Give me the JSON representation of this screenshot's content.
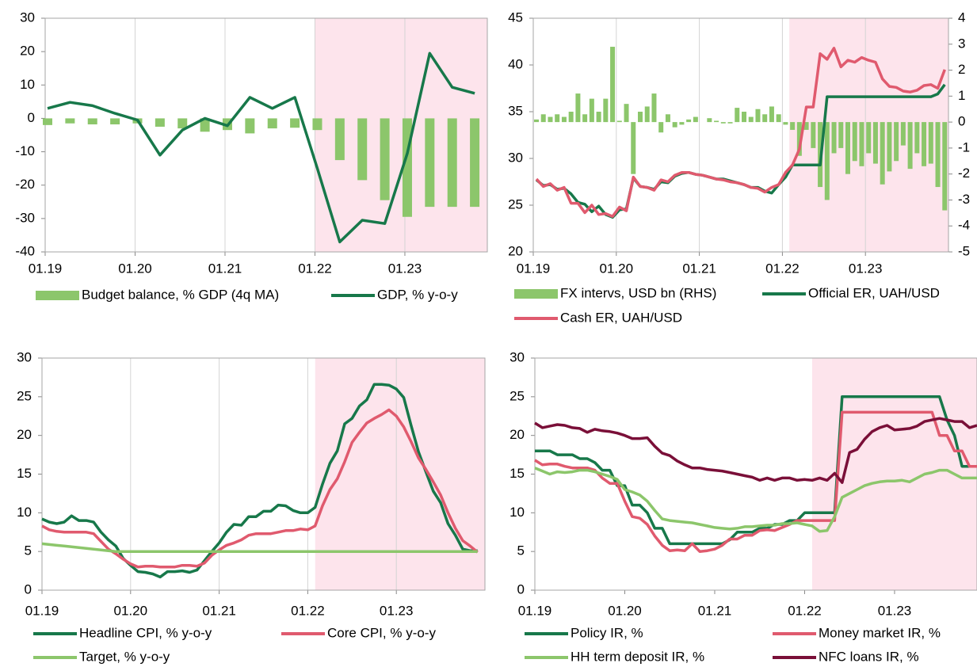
{
  "chart_data": [
    {
      "type": "combo",
      "grid": "vertical",
      "shade_from": "2022-01",
      "xlim": [
        "2019-01",
        "2023-12"
      ],
      "xticks": [
        {
          "value": "2019-01",
          "label": "01.19"
        },
        {
          "value": "2020-01",
          "label": "01.20"
        },
        {
          "value": "2021-01",
          "label": "01.21"
        },
        {
          "value": "2022-01",
          "label": "01.22"
        },
        {
          "value": "2023-01",
          "label": "01.23"
        }
      ],
      "ylim": [
        -40,
        30
      ],
      "yticks": [
        -40,
        -30,
        -20,
        -10,
        0,
        10,
        20,
        30
      ],
      "x": [
        "2019-01",
        "2019-04",
        "2019-07",
        "2019-10",
        "2020-01",
        "2020-04",
        "2020-07",
        "2020-10",
        "2021-01",
        "2021-04",
        "2021-07",
        "2021-10",
        "2022-01",
        "2022-04",
        "2022-07",
        "2022-10",
        "2023-01",
        "2023-04",
        "2023-07",
        "2023-10"
      ],
      "series": [
        {
          "name": "Budget balance, % GDP (4q MA)",
          "type": "bar",
          "color": "#8cc66b",
          "values": [
            -2,
            -1.5,
            -1.8,
            -1.8,
            -1.5,
            -2.5,
            -3,
            -4,
            -3.5,
            -4.5,
            -3,
            -2.8,
            -3.5,
            -12.5,
            -18.5,
            -24.5,
            -29.5,
            -26.5,
            -26.5,
            -26.5
          ]
        },
        {
          "name": "GDP, % y-o-y",
          "type": "line",
          "color": "#17784a",
          "values": [
            3,
            4.8,
            3.8,
            1.5,
            -0.5,
            -11,
            -3.5,
            0,
            -2.2,
            6.3,
            3,
            6.3,
            -15,
            -37,
            -30.5,
            -31.5,
            -10.5,
            19.5,
            9.3,
            7.5
          ]
        }
      ]
    },
    {
      "type": "combo",
      "grid": "vertical",
      "shade_from": "2022-02",
      "xlim": [
        "2019-01",
        "2024-01"
      ],
      "xticks": [
        {
          "value": "2019-01",
          "label": "01.19"
        },
        {
          "value": "2020-01",
          "label": "01.20"
        },
        {
          "value": "2021-01",
          "label": "01.21"
        },
        {
          "value": "2022-01",
          "label": "01.22"
        },
        {
          "value": "2023-01",
          "label": "01.23"
        }
      ],
      "ylim": [
        20,
        45
      ],
      "yticks": [
        20,
        25,
        30,
        35,
        40,
        45
      ],
      "y2lim": [
        -5,
        4
      ],
      "y2ticks": [
        -5,
        -4,
        -3,
        -2,
        -1,
        0,
        1,
        2,
        3,
        4
      ],
      "x": [
        "2019-01",
        "2019-02",
        "2019-03",
        "2019-04",
        "2019-05",
        "2019-06",
        "2019-07",
        "2019-08",
        "2019-09",
        "2019-10",
        "2019-11",
        "2019-12",
        "2020-01",
        "2020-02",
        "2020-03",
        "2020-04",
        "2020-05",
        "2020-06",
        "2020-07",
        "2020-08",
        "2020-09",
        "2020-10",
        "2020-11",
        "2020-12",
        "2021-01",
        "2021-02",
        "2021-03",
        "2021-04",
        "2021-05",
        "2021-06",
        "2021-07",
        "2021-08",
        "2021-09",
        "2021-10",
        "2021-11",
        "2021-12",
        "2022-01",
        "2022-02",
        "2022-03",
        "2022-04",
        "2022-05",
        "2022-06",
        "2022-07",
        "2022-08",
        "2022-09",
        "2022-10",
        "2022-11",
        "2022-12",
        "2023-01",
        "2023-02",
        "2023-03",
        "2023-04",
        "2023-05",
        "2023-06",
        "2023-07",
        "2023-08",
        "2023-09",
        "2023-10",
        "2023-11",
        "2023-12"
      ],
      "series": [
        {
          "name": "FX intervs, USD bn (RHS)",
          "type": "bar",
          "axis": "y2",
          "color": "#8cc66b",
          "values": [
            0.1,
            0.3,
            0.2,
            0.3,
            0.2,
            0.4,
            1.1,
            0.3,
            0.9,
            0.4,
            0.9,
            2.9,
            0.05,
            0.7,
            -2.0,
            0.4,
            0.6,
            1.1,
            -0.4,
            0.3,
            -0.2,
            -0.1,
            0.1,
            0.2,
            0.0,
            0.15,
            0.05,
            -0.05,
            -0.05,
            0.55,
            0.4,
            0.2,
            0.5,
            0.3,
            0.6,
            0.3,
            -0.1,
            -0.3,
            -1.3,
            -0.3,
            -1.0,
            -2.5,
            -3.0,
            -1.2,
            -1.0,
            -2.0,
            -1.5,
            -1.7,
            -1.2,
            -1.6,
            -2.4,
            -1.9,
            -1.5,
            -0.9,
            -1.8,
            -1.2,
            -1.7,
            -1.6,
            -2.5,
            -3.4
          ]
        },
        {
          "name": "Official ER, UAH/USD",
          "type": "line",
          "color": "#17784a",
          "values": [
            27.7,
            27.1,
            27.2,
            26.7,
            26.8,
            26.2,
            25.3,
            25.1,
            24.3,
            24.9,
            24.0,
            23.7,
            24.5,
            24.6,
            27.9,
            27.0,
            26.9,
            26.7,
            27.5,
            27.4,
            28.1,
            28.4,
            28.5,
            28.3,
            28.2,
            28.0,
            27.8,
            27.8,
            27.6,
            27.4,
            27.2,
            26.9,
            26.9,
            26.5,
            26.3,
            27.2,
            28.0,
            29.3,
            29.3,
            29.3,
            29.3,
            29.3,
            36.6,
            36.6,
            36.6,
            36.6,
            36.6,
            36.6,
            36.6,
            36.6,
            36.6,
            36.6,
            36.6,
            36.6,
            36.6,
            36.6,
            36.6,
            36.6,
            36.9,
            37.9
          ]
        },
        {
          "name": "Cash ER, UAH/USD",
          "type": "line",
          "color": "#e05a6e",
          "values": [
            27.8,
            27.0,
            27.3,
            26.6,
            26.9,
            25.2,
            25.2,
            24.2,
            25.0,
            24.0,
            24.1,
            23.8,
            24.8,
            24.4,
            28.0,
            27.0,
            26.9,
            26.6,
            27.7,
            27.5,
            28.2,
            28.5,
            28.5,
            28.3,
            28.2,
            28.0,
            27.8,
            27.7,
            27.5,
            27.4,
            27.2,
            26.9,
            26.8,
            26.4,
            26.9,
            27.2,
            28.5,
            29.3,
            31.0,
            35.5,
            35.5,
            41.2,
            40.6,
            41.8,
            39.8,
            40.5,
            40.3,
            40.8,
            40.5,
            40.3,
            38.5,
            37.7,
            37.6,
            37.2,
            37.1,
            37.3,
            37.8,
            37.9,
            37.5,
            39.5
          ]
        }
      ]
    },
    {
      "type": "line",
      "grid": "vertical",
      "shade_from": "2022-02",
      "xlim": [
        "2019-01",
        "2024-01"
      ],
      "xticks": [
        {
          "value": "2019-01",
          "label": "01.19"
        },
        {
          "value": "2020-01",
          "label": "01.20"
        },
        {
          "value": "2021-01",
          "label": "01.21"
        },
        {
          "value": "2022-01",
          "label": "01.22"
        },
        {
          "value": "2023-01",
          "label": "01.23"
        }
      ],
      "ylim": [
        0,
        30
      ],
      "yticks": [
        0,
        5,
        10,
        15,
        20,
        25,
        30
      ],
      "x": [
        "2019-01",
        "2019-02",
        "2019-03",
        "2019-04",
        "2019-05",
        "2019-06",
        "2019-07",
        "2019-08",
        "2019-09",
        "2019-10",
        "2019-11",
        "2019-12",
        "2020-01",
        "2020-02",
        "2020-03",
        "2020-04",
        "2020-05",
        "2020-06",
        "2020-07",
        "2020-08",
        "2020-09",
        "2020-10",
        "2020-11",
        "2020-12",
        "2021-01",
        "2021-02",
        "2021-03",
        "2021-04",
        "2021-05",
        "2021-06",
        "2021-07",
        "2021-08",
        "2021-09",
        "2021-10",
        "2021-11",
        "2021-12",
        "2022-01",
        "2022-02",
        "2022-03",
        "2022-04",
        "2022-05",
        "2022-06",
        "2022-07",
        "2022-08",
        "2022-09",
        "2022-10",
        "2022-11",
        "2022-12",
        "2023-01",
        "2023-02",
        "2023-03",
        "2023-04",
        "2023-05",
        "2023-06",
        "2023-07",
        "2023-08",
        "2023-09",
        "2023-10",
        "2023-11",
        "2023-12"
      ],
      "series": [
        {
          "name": "Headline CPI, % y-o-y",
          "color": "#17784a",
          "values": [
            9.2,
            8.8,
            8.6,
            8.8,
            9.6,
            9.0,
            9.0,
            8.8,
            7.5,
            6.5,
            5.7,
            4.1,
            3.2,
            2.4,
            2.3,
            2.1,
            1.7,
            2.4,
            2.4,
            2.5,
            2.3,
            2.6,
            3.8,
            5.0,
            6.1,
            7.5,
            8.5,
            8.4,
            9.5,
            9.5,
            10.2,
            10.2,
            11.0,
            10.9,
            10.3,
            10.0,
            10.0,
            10.7,
            13.7,
            16.4,
            18.0,
            21.5,
            22.2,
            23.8,
            24.6,
            26.6,
            26.6,
            26.5,
            26.0,
            24.9,
            21.3,
            17.9,
            15.3,
            12.8,
            11.3,
            8.6,
            7.1,
            5.3,
            5.1,
            5.1
          ]
        },
        {
          "name": "Core CPI, % y-o-y",
          "color": "#e05a6e",
          "values": [
            8.3,
            7.8,
            7.6,
            7.5,
            7.5,
            7.5,
            7.5,
            7.3,
            6.3,
            5.3,
            4.7,
            4.0,
            3.4,
            3.0,
            3.1,
            3.1,
            3.0,
            3.0,
            3.0,
            3.2,
            3.2,
            3.1,
            3.5,
            4.5,
            5.2,
            5.8,
            6.1,
            6.5,
            7.1,
            7.3,
            7.3,
            7.3,
            7.5,
            7.7,
            7.7,
            7.9,
            7.8,
            8.3,
            10.9,
            13.0,
            14.4,
            16.6,
            19.1,
            20.4,
            21.6,
            22.2,
            22.7,
            23.3,
            22.5,
            21.1,
            19.2,
            17.1,
            15.6,
            14.0,
            12.3,
            10.0,
            8.0,
            6.4,
            5.7,
            4.9
          ]
        },
        {
          "name": "Target, % y-o-y",
          "color": "#8cc66b",
          "values": [
            6.0,
            5.9,
            5.8,
            5.7,
            5.6,
            5.5,
            5.4,
            5.3,
            5.2,
            5.1,
            5.0,
            5.0,
            5,
            5,
            5,
            5,
            5,
            5,
            5,
            5,
            5,
            5,
            5,
            5,
            5,
            5,
            5,
            5,
            5,
            5,
            5,
            5,
            5,
            5,
            5,
            5,
            5,
            5,
            5,
            5,
            5,
            5,
            5,
            5,
            5,
            5,
            5,
            5,
            5,
            5,
            5,
            5,
            5,
            5,
            5,
            5,
            5,
            5,
            5,
            5
          ]
        }
      ]
    },
    {
      "type": "line",
      "grid": false,
      "shade_from": "2022-02",
      "xlim": [
        "2019-01",
        "2023-12"
      ],
      "xticks": [
        {
          "value": "2019-01",
          "label": "01.19"
        },
        {
          "value": "2020-01",
          "label": "01.20"
        },
        {
          "value": "2021-01",
          "label": "01.21"
        },
        {
          "value": "2022-01",
          "label": "01.22"
        },
        {
          "value": "2023-01",
          "label": "01.23"
        }
      ],
      "ylim": [
        0,
        30
      ],
      "yticks": [
        0,
        5,
        10,
        15,
        20,
        25,
        30
      ],
      "x": [
        "2019-01",
        "2019-02",
        "2019-03",
        "2019-04",
        "2019-05",
        "2019-06",
        "2019-07",
        "2019-08",
        "2019-09",
        "2019-10",
        "2019-11",
        "2019-12",
        "2020-01",
        "2020-02",
        "2020-03",
        "2020-04",
        "2020-05",
        "2020-06",
        "2020-07",
        "2020-08",
        "2020-09",
        "2020-10",
        "2020-11",
        "2020-12",
        "2021-01",
        "2021-02",
        "2021-03",
        "2021-04",
        "2021-05",
        "2021-06",
        "2021-07",
        "2021-08",
        "2021-09",
        "2021-10",
        "2021-11",
        "2021-12",
        "2022-01",
        "2022-02",
        "2022-03",
        "2022-04",
        "2022-05",
        "2022-06",
        "2022-07",
        "2022-08",
        "2022-09",
        "2022-10",
        "2022-11",
        "2022-12",
        "2023-01",
        "2023-02",
        "2023-03",
        "2023-04",
        "2023-05",
        "2023-06",
        "2023-07",
        "2023-08",
        "2023-09",
        "2023-10",
        "2023-11",
        "2023-12"
      ],
      "series": [
        {
          "name": "Policy IR, %",
          "color": "#17784a",
          "values": [
            18,
            18,
            18,
            17.5,
            17.5,
            17.5,
            17,
            17,
            16.5,
            15.5,
            15.5,
            13.5,
            13.5,
            11,
            11,
            10,
            8,
            8,
            6,
            6,
            6,
            6,
            6,
            6,
            6,
            6,
            6.5,
            7.5,
            7.5,
            7.5,
            8,
            8,
            8.5,
            8.5,
            9,
            9,
            10,
            10,
            10,
            10,
            10,
            25,
            25,
            25,
            25,
            25,
            25,
            25,
            25,
            25,
            25,
            25,
            25,
            25,
            25,
            22,
            20,
            16,
            16,
            16
          ]
        },
        {
          "name": "Money market IR, %",
          "color": "#e05a6e",
          "values": [
            16.8,
            16.2,
            16.3,
            16.3,
            16.0,
            15.8,
            15.8,
            15.8,
            15.5,
            14.5,
            13.8,
            13.8,
            11.5,
            9.5,
            9.3,
            8.5,
            7.0,
            5.8,
            5.1,
            5.2,
            5.1,
            6.0,
            5.0,
            5.1,
            5.3,
            5.8,
            6.6,
            6.6,
            7.1,
            7.1,
            7.7,
            7.8,
            7.7,
            8.1,
            8.5,
            9.0,
            9.0,
            9.0,
            9.0,
            9.0,
            9.0,
            23,
            23,
            23,
            23,
            23,
            23,
            23,
            23,
            23,
            23,
            23,
            23,
            23,
            20,
            20,
            18,
            18,
            16,
            16
          ]
        },
        {
          "name": "HH term deposit IR, %",
          "color": "#8cc66b",
          "values": [
            15.8,
            15.4,
            15.0,
            15.3,
            15.2,
            15.3,
            15.5,
            15.5,
            15.3,
            15.0,
            14.7,
            14.3,
            13.0,
            12.7,
            12.3,
            11.5,
            10.3,
            9.2,
            9.0,
            8.9,
            8.8,
            8.7,
            8.5,
            8.3,
            8.1,
            8.0,
            7.9,
            8.0,
            8.2,
            8.2,
            8.3,
            8.4,
            8.4,
            8.6,
            8.6,
            8.7,
            8.5,
            8.3,
            7.6,
            7.7,
            9.5,
            12.0,
            12.5,
            13.0,
            13.5,
            13.8,
            14.0,
            14.1,
            14.1,
            14.2,
            14.0,
            14.5,
            15.0,
            15.2,
            15.5,
            15.5,
            15.0,
            14.5,
            14.5,
            14.5
          ]
        },
        {
          "name": "NFC loans IR, %",
          "color": "#7a0f38",
          "values": [
            21.6,
            21.0,
            21.2,
            21.4,
            21.3,
            21.0,
            20.9,
            20.4,
            20.8,
            20.6,
            20.5,
            20.3,
            20.0,
            19.6,
            19.6,
            19.7,
            18.6,
            17.7,
            17.4,
            16.7,
            16.2,
            15.8,
            15.8,
            15.6,
            15.5,
            15.4,
            15.2,
            15.0,
            14.8,
            14.6,
            14.2,
            14.5,
            14.2,
            14.5,
            14.5,
            14.2,
            14.3,
            14.2,
            14.5,
            14.2,
            15.1,
            13.9,
            17.8,
            18.2,
            19.5,
            20.5,
            21.0,
            21.3,
            20.7,
            20.8,
            20.9,
            21.2,
            21.8,
            22.0,
            22.2,
            22.0,
            21.8,
            21.8,
            21.0,
            21.3
          ]
        }
      ]
    }
  ]
}
